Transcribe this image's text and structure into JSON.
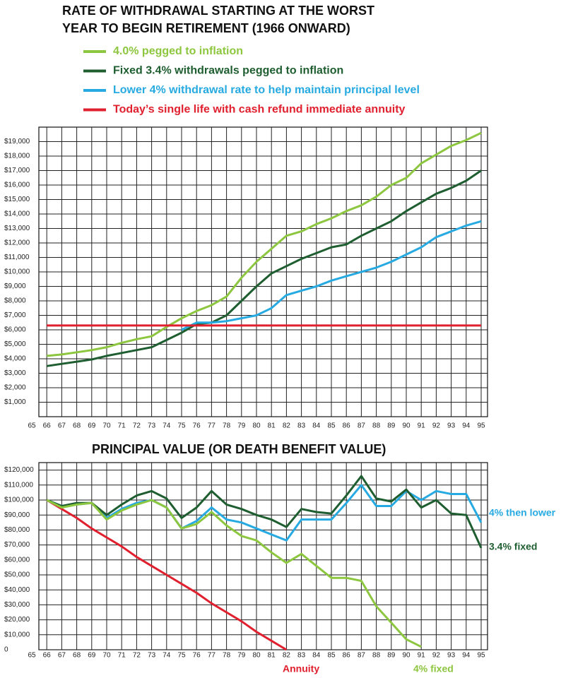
{
  "chart_data": [
    {
      "type": "line",
      "title": [
        "RATE OF WITHDRAWAL STARTING AT THE WORST",
        "YEAR TO BEGIN RETIREMENT (1966 ONWARD)"
      ],
      "categories": [
        "65",
        "66",
        "67",
        "68",
        "69",
        "70",
        "71",
        "72",
        "73",
        "74",
        "75",
        "76",
        "77",
        "78",
        "79",
        "80",
        "81",
        "82",
        "83",
        "84",
        "85",
        "86",
        "87",
        "88",
        "89",
        "90",
        "91",
        "92",
        "93",
        "94",
        "95"
      ],
      "ylim": [
        0,
        20000
      ],
      "yticks": [
        {
          "value": 1000,
          "label": "$1,000"
        },
        {
          "value": 2000,
          "label": "$2,000"
        },
        {
          "value": 3000,
          "label": "$3,000"
        },
        {
          "value": 4000,
          "label": "$4,000"
        },
        {
          "value": 5000,
          "label": "$5,000"
        },
        {
          "value": 6000,
          "label": "$6,000"
        },
        {
          "value": 7000,
          "label": "$7,000"
        },
        {
          "value": 8000,
          "label": "$8,000"
        },
        {
          "value": 9000,
          "label": "$9,000"
        },
        {
          "value": 10000,
          "label": "$10,000"
        },
        {
          "value": 11000,
          "label": "$11,000"
        },
        {
          "value": 12000,
          "label": "$12,000"
        },
        {
          "value": 13000,
          "label": "$13,000"
        },
        {
          "value": 14000,
          "label": "$14,000"
        },
        {
          "value": 15000,
          "label": "$15,000"
        },
        {
          "value": 16000,
          "label": "$16,000"
        },
        {
          "value": 17000,
          "label": "$17,000"
        },
        {
          "value": 18000,
          "label": "$18,000"
        },
        {
          "value": 19000,
          "label": "$19,000"
        }
      ],
      "grid": true,
      "legend": "top",
      "series": [
        {
          "name": "4.0% pegged to inflation",
          "color": "#8dc63f",
          "values": [
            null,
            4200,
            4300,
            4450,
            4600,
            4800,
            5100,
            5350,
            5550,
            6200,
            6800,
            7300,
            7700,
            8300,
            9600,
            10700,
            11600,
            12500,
            12800,
            13300,
            13700,
            14200,
            14600,
            15200,
            16000,
            16500,
            17500,
            18100,
            18700,
            19100,
            19600
          ]
        },
        {
          "name": "Fixed 3.4% withdrawals pegged to inflation",
          "color": "#1e5e30",
          "values": [
            null,
            3500,
            3650,
            3800,
            3950,
            4200,
            4400,
            4600,
            4800,
            5300,
            5800,
            6400,
            6500,
            7000,
            8000,
            9000,
            9900,
            10400,
            10900,
            11300,
            11700,
            11900,
            12500,
            13000,
            13500,
            14200,
            14800,
            15400,
            15800,
            16300,
            17000
          ]
        },
        {
          "name": "Lower 4% withdrawal rate to help maintain principal level",
          "color": "#27aae1",
          "values": [
            null,
            null,
            null,
            null,
            null,
            null,
            null,
            null,
            null,
            null,
            6000,
            6500,
            6500,
            6600,
            6800,
            7000,
            7500,
            8400,
            8700,
            9000,
            9400,
            9700,
            10000,
            10300,
            10700,
            11200,
            11700,
            12400,
            12800,
            13200,
            13500
          ]
        },
        {
          "name": "Today’s single life with cash refund immediate annuity",
          "color": "#e0202e",
          "values": [
            null,
            6300,
            6300,
            6300,
            6300,
            6300,
            6300,
            6300,
            6300,
            6300,
            6300,
            6300,
            6300,
            6300,
            6300,
            6300,
            6300,
            6300,
            6300,
            6300,
            6300,
            6300,
            6300,
            6300,
            6300,
            6300,
            6300,
            6300,
            6300,
            6300,
            6300
          ]
        }
      ]
    },
    {
      "type": "line",
      "title": [
        "PRINCIPAL VALUE (OR DEATH BENEFIT VALUE)"
      ],
      "categories": [
        "65",
        "66",
        "67",
        "68",
        "69",
        "70",
        "71",
        "72",
        "73",
        "74",
        "75",
        "76",
        "77",
        "78",
        "79",
        "80",
        "81",
        "82",
        "83",
        "84",
        "85",
        "86",
        "87",
        "88",
        "89",
        "90",
        "91",
        "92",
        "93",
        "94",
        "95"
      ],
      "ylim": [
        0,
        125000
      ],
      "yticks": [
        0,
        {
          "value": 10000,
          "label": "$10,000"
        },
        {
          "value": 20000,
          "label": "$20,000"
        },
        {
          "value": 30000,
          "label": "$30,000"
        },
        {
          "value": 40000,
          "label": "$40,000"
        },
        {
          "value": 50000,
          "label": "$50,000"
        },
        {
          "value": 60000,
          "label": "$60,000"
        },
        {
          "value": 70000,
          "label": "$70,000"
        },
        {
          "value": 80000,
          "label": "$80,000"
        },
        {
          "value": 90000,
          "label": "$90,000"
        },
        {
          "value": 100000,
          "label": "$100,000"
        },
        {
          "value": 110000,
          "label": "$110,000"
        },
        {
          "value": 120000,
          "label": "$120,000"
        }
      ],
      "grid": true,
      "legend": "line-ends",
      "series": [
        {
          "name": "4% then lower",
          "color": "#27aae1",
          "values": [
            null,
            100000,
            96000,
            97000,
            98000,
            88000,
            94000,
            98000,
            100000,
            95000,
            81000,
            86000,
            95000,
            87000,
            85000,
            81000,
            77000,
            73000,
            87000,
            87000,
            87000,
            98000,
            110000,
            96000,
            96000,
            106000,
            100000,
            106000,
            104000,
            104000,
            85000
          ]
        },
        {
          "name": "3.4% fixed",
          "color": "#1e5e30",
          "values": [
            null,
            100000,
            96000,
            98000,
            98000,
            90000,
            97000,
            103000,
            106000,
            101000,
            88000,
            95000,
            106000,
            97000,
            94000,
            90000,
            87000,
            82000,
            94000,
            92000,
            91000,
            103000,
            116000,
            101000,
            99000,
            107000,
            95000,
            100000,
            91000,
            90000,
            68000
          ]
        },
        {
          "name": "Annuity",
          "color": "#e0202e",
          "values": [
            null,
            100000,
            94000,
            88000,
            81000,
            75000,
            69000,
            62000,
            56000,
            50000,
            44000,
            38000,
            31000,
            25000,
            19000,
            12000,
            6000,
            0,
            null,
            null,
            null,
            null,
            null,
            null,
            null,
            null,
            null,
            null,
            null,
            null,
            null
          ]
        },
        {
          "name": "4% fixed",
          "color": "#8dc63f",
          "values": [
            null,
            100000,
            95000,
            97000,
            98000,
            87000,
            93000,
            97000,
            100000,
            95000,
            81000,
            84000,
            92000,
            83000,
            76000,
            73000,
            65000,
            58000,
            64000,
            56000,
            48000,
            48000,
            46000,
            29000,
            18000,
            7000,
            2000,
            null,
            null,
            null,
            null
          ]
        }
      ]
    }
  ]
}
